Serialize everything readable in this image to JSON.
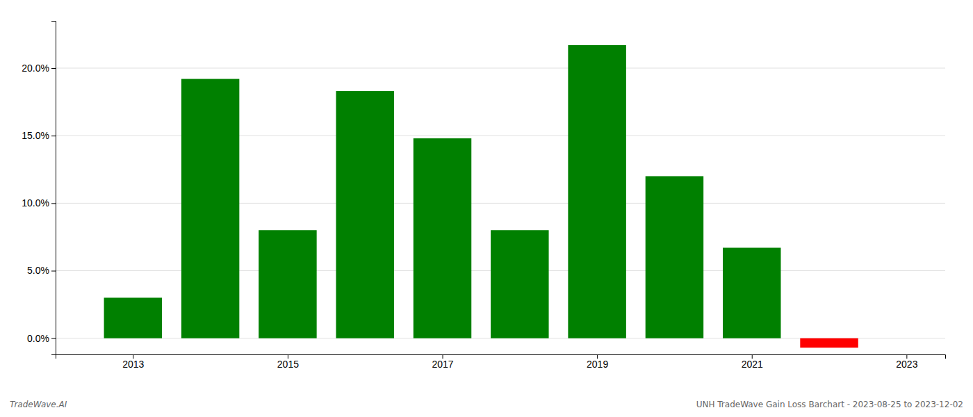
{
  "chart_data": {
    "type": "bar",
    "x": [
      2013,
      2014,
      2015,
      2016,
      2017,
      2018,
      2019,
      2020,
      2021,
      2022
    ],
    "values": [
      0.03,
      0.192,
      0.08,
      0.183,
      0.148,
      0.08,
      0.217,
      0.12,
      0.067,
      -0.007
    ],
    "colors": [
      "#008000",
      "#008000",
      "#008000",
      "#008000",
      "#008000",
      "#008000",
      "#008000",
      "#008000",
      "#008000",
      "#ff0000"
    ],
    "xlim": [
      2012.0,
      2023.5
    ],
    "xticks": [
      2013,
      2015,
      2017,
      2019,
      2021,
      2023
    ],
    "ylim": [
      -0.012,
      0.235
    ],
    "yticks": [
      {
        "value": 0.0,
        "label": "0.0%"
      },
      {
        "value": 0.05,
        "label": "5.0%"
      },
      {
        "value": 0.1,
        "label": "10.0%"
      },
      {
        "value": 0.15,
        "label": "15.0%"
      },
      {
        "value": 0.2,
        "label": "20.0%"
      }
    ],
    "grid": true,
    "annotations": [
      "TradeWave.AI",
      "UNH TradeWave Gain Loss Barchart - 2023-08-25 to 2023-12-02"
    ]
  }
}
